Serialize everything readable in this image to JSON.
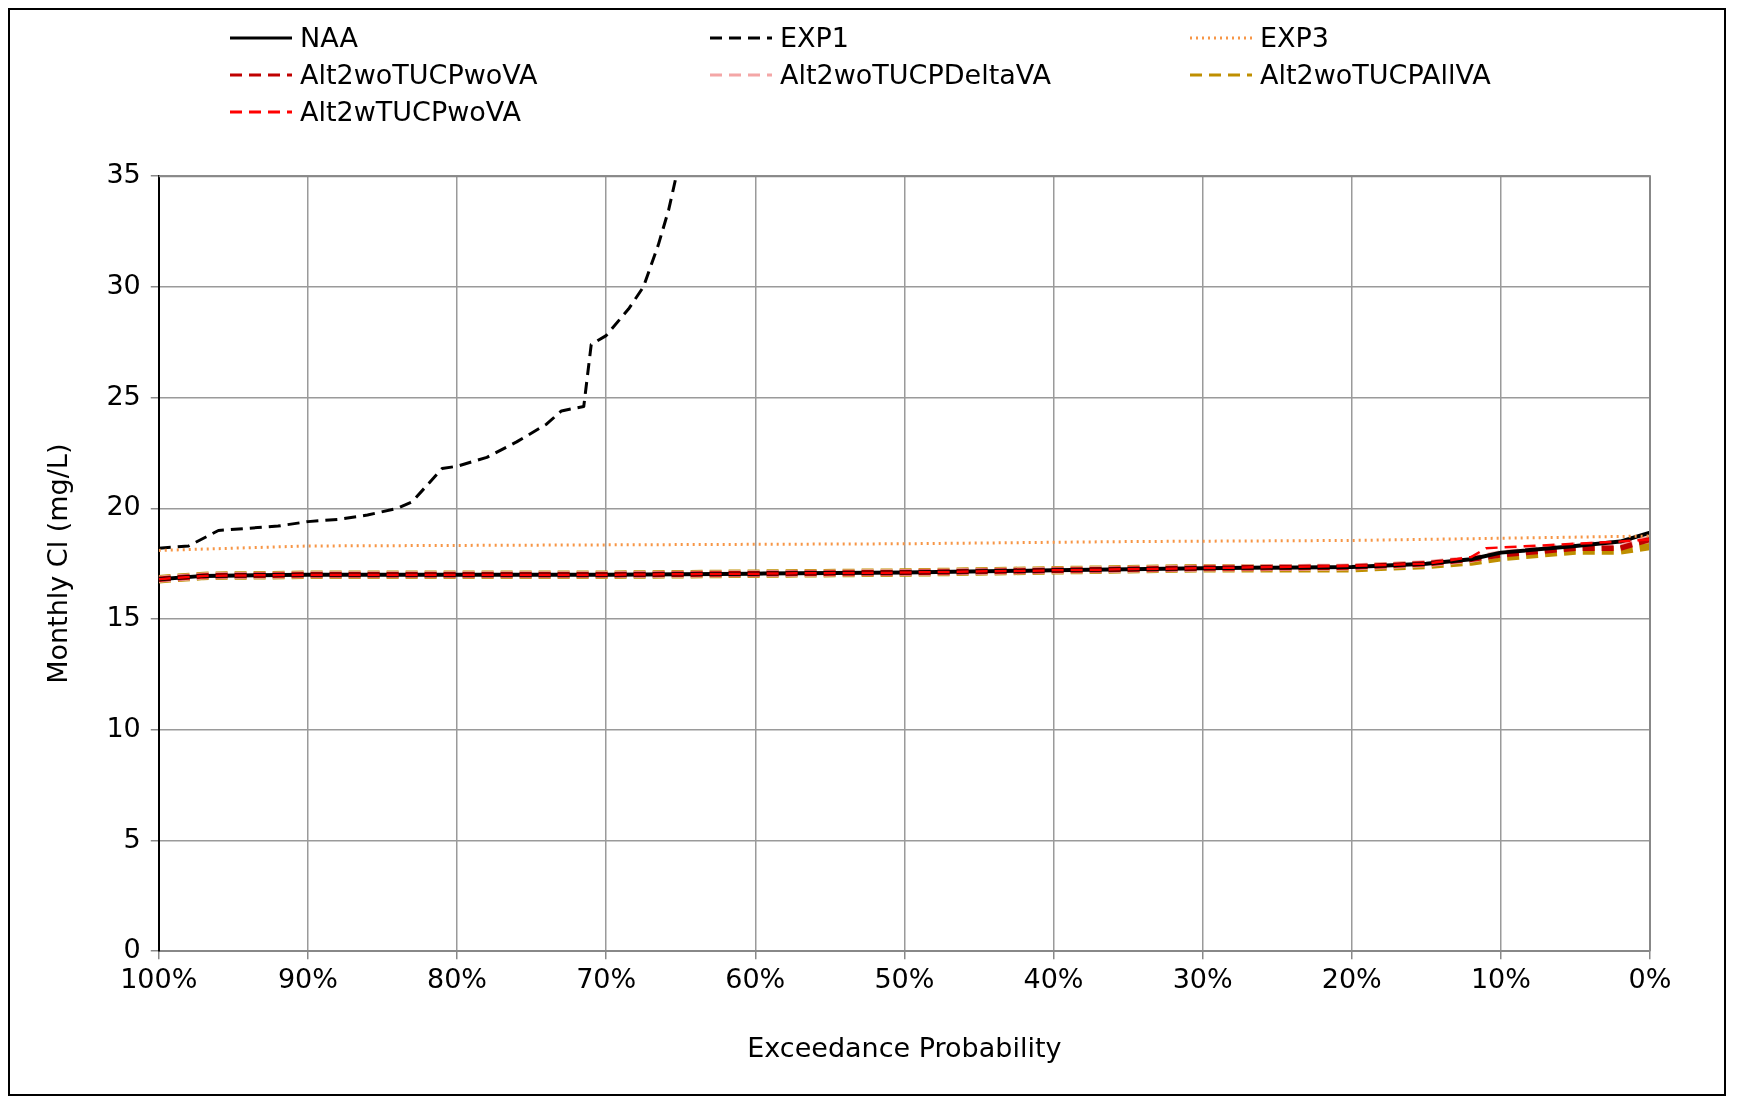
{
  "chart_data": {
    "type": "line",
    "xlabel": "Exceedance Probability",
    "ylabel": "Monthly Cl (mg/L)",
    "xlim": [
      100,
      0
    ],
    "xticks": [
      {
        "value": 100,
        "label": "100%"
      },
      {
        "value": 90,
        "label": "90%"
      },
      {
        "value": 80,
        "label": "80%"
      },
      {
        "value": 70,
        "label": "70%"
      },
      {
        "value": 60,
        "label": "60%"
      },
      {
        "value": 50,
        "label": "50%"
      },
      {
        "value": 40,
        "label": "40%"
      },
      {
        "value": 30,
        "label": "30%"
      },
      {
        "value": 20,
        "label": "20%"
      },
      {
        "value": 10,
        "label": "10%"
      },
      {
        "value": 0,
        "label": "0%"
      }
    ],
    "ylim": [
      0,
      35
    ],
    "yticks": [
      0,
      5,
      10,
      15,
      20,
      25,
      30,
      35
    ],
    "grid": true,
    "legend": "top",
    "marker": "none",
    "series": [
      {
        "name": "NAA",
        "color": "#000000",
        "line_style": "solid",
        "x": [
          100,
          97,
          90,
          80,
          70,
          60,
          50,
          40,
          30,
          20,
          15,
          12,
          10,
          5,
          2,
          0
        ],
        "values": [
          16.8,
          16.95,
          17.0,
          17.0,
          17.0,
          17.05,
          17.1,
          17.2,
          17.3,
          17.35,
          17.5,
          17.7,
          18.0,
          18.3,
          18.5,
          18.9
        ]
      },
      {
        "name": "EXP1",
        "color": "#000000",
        "line_style": "dashed",
        "x": [
          100,
          98,
          96,
          94,
          92,
          90,
          88,
          86,
          84,
          83,
          81,
          80,
          78,
          76,
          74,
          73,
          71.5,
          71,
          70,
          68.5,
          67.5,
          66.5,
          65.8,
          65.3
        ],
        "values": [
          18.2,
          18.3,
          19.0,
          19.1,
          19.2,
          19.4,
          19.5,
          19.7,
          20.0,
          20.3,
          21.8,
          21.9,
          22.3,
          23.0,
          23.8,
          24.4,
          24.6,
          27.4,
          27.8,
          29.0,
          30.0,
          31.9,
          33.5,
          35.0
        ]
      },
      {
        "name": "EXP3",
        "color": "#f79646",
        "line_style": "dotted",
        "x": [
          100,
          90,
          70,
          50,
          35,
          20,
          10,
          0
        ],
        "values": [
          18.1,
          18.3,
          18.35,
          18.4,
          18.5,
          18.55,
          18.65,
          18.75
        ]
      },
      {
        "name": "Alt2woTUCPwoVA",
        "color": "#c00000",
        "line_style": "dashed",
        "x": [
          100,
          97,
          90,
          80,
          70,
          60,
          50,
          40,
          30,
          20,
          15,
          12,
          10,
          5,
          2,
          0
        ],
        "values": [
          16.8,
          16.95,
          17.0,
          17.0,
          17.0,
          17.05,
          17.1,
          17.2,
          17.3,
          17.35,
          17.5,
          17.7,
          17.9,
          18.2,
          18.2,
          18.6
        ]
      },
      {
        "name": "Alt2woTUCPDeltaVA",
        "color": "#f4a6a6",
        "line_style": "dashed",
        "x": [
          100,
          97,
          90,
          80,
          70,
          60,
          50,
          40,
          30,
          20,
          15,
          12,
          10,
          5,
          2,
          0
        ],
        "values": [
          16.8,
          16.95,
          17.0,
          17.0,
          17.0,
          17.05,
          17.1,
          17.2,
          17.3,
          17.35,
          17.5,
          17.7,
          17.95,
          18.3,
          18.4,
          18.6
        ]
      },
      {
        "name": "Alt2woTUCPAllVA",
        "color": "#bf8f00",
        "line_style": "dashed",
        "x": [
          100,
          97,
          90,
          80,
          70,
          60,
          50,
          40,
          30,
          20,
          15,
          12,
          10,
          5,
          2,
          0
        ],
        "values": [
          16.8,
          16.95,
          17.0,
          17.0,
          17.0,
          17.05,
          17.1,
          17.2,
          17.3,
          17.3,
          17.45,
          17.6,
          17.8,
          18.1,
          18.1,
          18.3
        ]
      },
      {
        "name": "Alt2wTUCPwoVA",
        "color": "#ff0000",
        "line_style": "dashed",
        "x": [
          100,
          97,
          90,
          80,
          70,
          60,
          50,
          40,
          30,
          20,
          15,
          12,
          11,
          5,
          2,
          0
        ],
        "values": [
          16.8,
          16.95,
          17.0,
          17.0,
          17.0,
          17.05,
          17.1,
          17.2,
          17.3,
          17.4,
          17.5,
          17.8,
          18.2,
          18.4,
          18.5,
          18.6
        ]
      }
    ]
  }
}
